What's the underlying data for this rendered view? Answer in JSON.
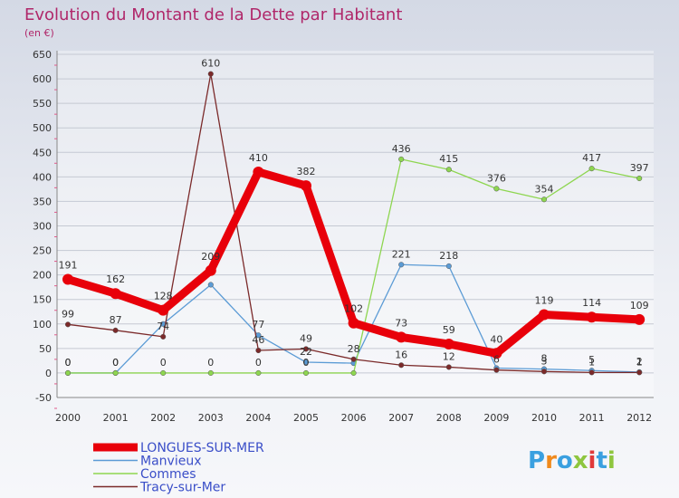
{
  "chart_data": {
    "type": "line",
    "title": "Evolution du Montant de la Dette par Habitant",
    "subtitle": "(en €)",
    "xlabel": "",
    "ylabel": "",
    "ylim": [
      -50,
      650
    ],
    "ytick_step": 50,
    "grid": true,
    "legend_position": "bottom-left",
    "categories": [
      "2000",
      "2001",
      "2002",
      "2003",
      "2004",
      "2005",
      "2006",
      "2007",
      "2008",
      "2009",
      "2010",
      "2011",
      "2012"
    ],
    "series": [
      {
        "name": "LONGUES-SUR-MER",
        "color": "#e8000a",
        "emphasis": true,
        "values": [
          191,
          162,
          128,
          209,
          410,
          382,
          102,
          73,
          59,
          40,
          119,
          114,
          109
        ],
        "labels": [
          "191",
          "162",
          "128",
          "209",
          "410",
          "382",
          "102",
          "73",
          "59",
          "40",
          "119",
          "114",
          "109"
        ]
      },
      {
        "name": "Manvieux",
        "color": "#5b9bd5",
        "emphasis": false,
        "values": [
          0,
          0,
          100,
          180,
          77,
          22,
          20,
          221,
          218,
          10,
          8,
          5,
          2
        ],
        "labels": [
          "0",
          "0",
          "",
          "",
          "77",
          "22",
          "",
          "221",
          "218",
          "",
          "8",
          "5",
          "2"
        ]
      },
      {
        "name": "Commes",
        "color": "#8ed650",
        "emphasis": false,
        "values": [
          0,
          0,
          0,
          0,
          0,
          0,
          0,
          436,
          415,
          376,
          354,
          417,
          397
        ],
        "labels": [
          "0",
          "0",
          "0",
          "0",
          "0",
          "0",
          "",
          "436",
          "415",
          "376",
          "354",
          "417",
          "397"
        ]
      },
      {
        "name": "Tracy-sur-Mer",
        "color": "#7b2a2a",
        "emphasis": false,
        "values": [
          99,
          87,
          74,
          610,
          46,
          49,
          28,
          16,
          12,
          6,
          3,
          1,
          1
        ],
        "labels": [
          "99",
          "87",
          "74",
          "610",
          "46",
          "49",
          "28",
          "16",
          "12",
          "6",
          "3",
          "1",
          "1"
        ]
      }
    ]
  },
  "logo": {
    "text": "Proxiti"
  }
}
